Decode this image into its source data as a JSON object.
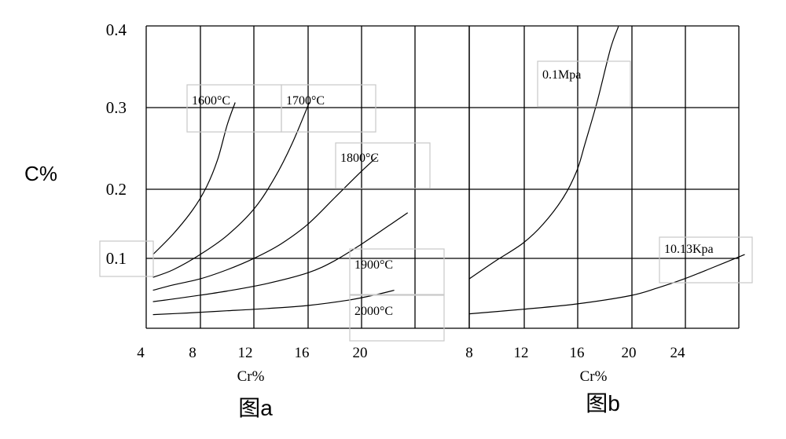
{
  "shared": {
    "ylabel": "C%",
    "y_ticks": [
      "0.4",
      "0.3",
      "0.2",
      "0.1"
    ],
    "grid": true
  },
  "chart_data": [
    {
      "type": "line",
      "caption": "图a",
      "xlabel": "Cr%",
      "ylabel": "C%",
      "x_ticks": [
        "4",
        "8",
        "12",
        "16",
        "20"
      ],
      "xlim": [
        4,
        29.4
      ],
      "ylim": [
        0.003,
        0.4
      ],
      "series": [
        {
          "name": "1600°C",
          "points": [
            [
              4.5,
              0.1
            ],
            [
              6,
              0.127
            ],
            [
              7.5,
              0.16
            ],
            [
              8.5,
              0.19
            ],
            [
              9.3,
              0.225
            ],
            [
              10,
              0.27
            ],
            [
              10.6,
              0.3
            ]
          ]
        },
        {
          "name": "1700°C",
          "points": [
            [
              4.5,
              0.07
            ],
            [
              6,
              0.08
            ],
            [
              8,
              0.1
            ],
            [
              10,
              0.125
            ],
            [
              12,
              0.16
            ],
            [
              13.5,
              0.2
            ],
            [
              14.8,
              0.245
            ],
            [
              16.1,
              0.3
            ]
          ]
        },
        {
          "name": "1800°C",
          "points": [
            [
              4.5,
              0.053
            ],
            [
              6,
              0.06
            ],
            [
              8,
              0.068
            ],
            [
              10,
              0.08
            ],
            [
              12,
              0.095
            ],
            [
              14,
              0.114
            ],
            [
              16,
              0.14
            ],
            [
              18,
              0.175
            ],
            [
              20,
              0.21
            ],
            [
              21.1,
              0.228
            ]
          ]
        },
        {
          "name": "1900°C",
          "points": [
            [
              4.5,
              0.038
            ],
            [
              7,
              0.044
            ],
            [
              10,
              0.052
            ],
            [
              13,
              0.062
            ],
            [
              16,
              0.076
            ],
            [
              18,
              0.092
            ],
            [
              20,
              0.114
            ],
            [
              22,
              0.138
            ],
            [
              23.4,
              0.155
            ]
          ]
        },
        {
          "name": "2000°C",
          "points": [
            [
              4.5,
              0.021
            ],
            [
              7,
              0.023
            ],
            [
              10,
              0.026
            ],
            [
              13,
              0.029
            ],
            [
              16,
              0.033
            ],
            [
              19,
              0.04
            ],
            [
              21,
              0.047
            ],
            [
              22.4,
              0.053
            ]
          ]
        }
      ]
    },
    {
      "type": "line",
      "caption": "图b",
      "xlabel": "Cr%",
      "ylabel": "C%",
      "x_ticks": [
        "8",
        "12",
        "16",
        "20",
        "24"
      ],
      "xlim": [
        8,
        28.6
      ],
      "ylim": [
        0.003,
        0.4
      ],
      "series": [
        {
          "name": "0.1Mpa",
          "points": [
            [
              8,
              0.068
            ],
            [
              10,
              0.092
            ],
            [
              12,
              0.115
            ],
            [
              13.5,
              0.14
            ],
            [
              15,
              0.175
            ],
            [
              16,
              0.21
            ],
            [
              16.6,
              0.245
            ],
            [
              17.5,
              0.3
            ],
            [
              18.5,
              0.37
            ],
            [
              19.1,
              0.4
            ]
          ]
        },
        {
          "name": "10.13Kpa",
          "points": [
            [
              8,
              0.022
            ],
            [
              12,
              0.028
            ],
            [
              16,
              0.035
            ],
            [
              20,
              0.046
            ],
            [
              22,
              0.056
            ],
            [
              24,
              0.068
            ],
            [
              26,
              0.082
            ],
            [
              28.5,
              0.1
            ]
          ]
        }
      ]
    }
  ]
}
